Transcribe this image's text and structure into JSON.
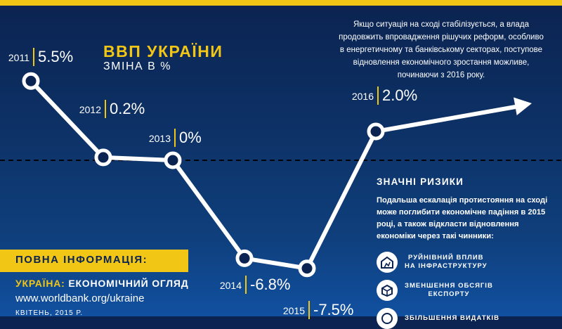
{
  "header": {
    "title": "ВВП УКРАЇНИ",
    "subtitle": "ЗМІНА В %"
  },
  "intro_text": "Якщо ситуація на сході стабілізується, а влада продовжить впровадження рішучих реформ, особливо в енергетичному та банківському секторах, поступове відновлення економічного зростання можливе, починаючи з 2016 року.",
  "risks": {
    "title": "ЗНАЧНІ РИЗИКИ",
    "text": "Подальша ескалація протистояння на сході може поглибити економічне падіння в 2015 році, а також відкласти відновлення економіки через такі чинники:",
    "items": [
      {
        "label_line1": "РУЙНІВНИЙ ВПЛИВ",
        "label_line2": "НА ІНФРАСТРУКТУРУ",
        "icon": "destroyed-building-icon"
      },
      {
        "label_line1": "ЗМЕНШЕННЯ ОБСЯГІВ",
        "label_line2": "ЕКСПОРТУ",
        "icon": "export-box-icon"
      },
      {
        "label_line1": "ЗБІЛЬШЕННЯ ВИДАТКІВ",
        "label_line2": "",
        "icon": "expenses-icon"
      }
    ]
  },
  "info": {
    "title": "ПОВНА ІНФОРМАЦІЯ:",
    "country": "УКРАЇНА:",
    "report": "ЕКОНОМІЧНИЙ ОГЛЯД",
    "url": "www.worldbank.org/ukraine",
    "date": "КВІТЕНЬ, 2015 Р."
  },
  "colors": {
    "accent": "#f2c615",
    "background_dark": "#0b2350",
    "background_light": "#1150a0",
    "marker_fill": "#0b2350"
  },
  "chart_data": {
    "type": "line",
    "title": "ВВП УКРАЇНИ",
    "ylabel": "ЗМІНА В %",
    "categories": [
      "2011",
      "2012",
      "2013",
      "2014",
      "2015",
      "2016"
    ],
    "values": [
      5.5,
      0.2,
      0,
      -6.8,
      -7.5,
      2.0
    ],
    "value_labels": [
      "5.5%",
      "0.2%",
      "0%",
      "-6.8%",
      "-7.5%",
      "2.0%"
    ],
    "reference_line": 0,
    "grid": false,
    "legend": "none"
  }
}
